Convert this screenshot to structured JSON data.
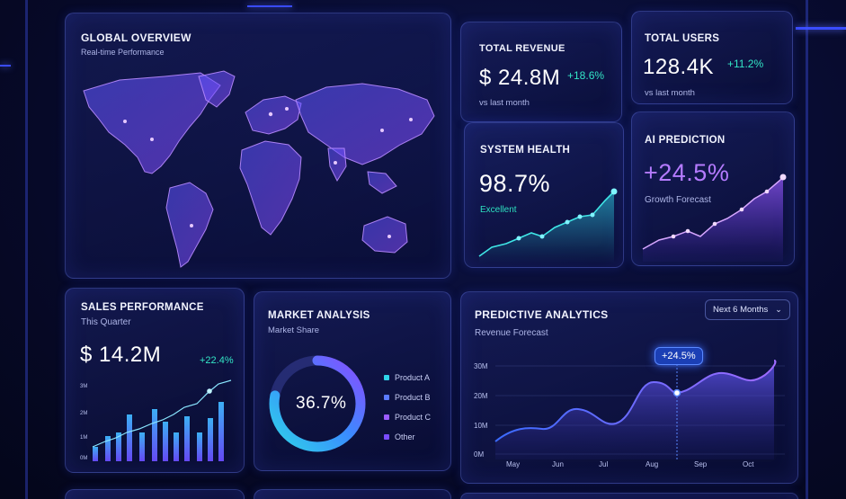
{
  "global_overview": {
    "title": "GLOBAL OVERVIEW",
    "subtitle": "Real-time Performance"
  },
  "total_revenue": {
    "title": "TOTAL REVENUE",
    "value": "$ 24.8M",
    "delta": "+18.6%",
    "note": "vs last month"
  },
  "total_users": {
    "title": "TOTAL USERS",
    "value": "128.4K",
    "delta": "+11.2%",
    "note": "vs last month"
  },
  "system_health": {
    "title": "SYSTEM HEALTH",
    "value": "98.7%",
    "status": "Excellent",
    "status_color": "#2de0c0"
  },
  "ai_prediction": {
    "title": "AI PREDICTION",
    "value": "+24.5%",
    "label": "Growth Forecast",
    "accent": "#b57bff"
  },
  "sales_performance": {
    "title": "SALES PERFORMANCE",
    "subtitle": "This Quarter",
    "value": "$ 14.2M",
    "delta": "+22.4%",
    "y_ticks": [
      "3M",
      "2M",
      "1M",
      "0M"
    ]
  },
  "market_analysis": {
    "title": "MARKET ANALYSIS",
    "subtitle": "Market Share",
    "center_value": "36.7%",
    "legend": [
      {
        "label": "Product A",
        "color": "#2fd3e8"
      },
      {
        "label": "Product B",
        "color": "#5b7bff"
      },
      {
        "label": "Product C",
        "color": "#9b5cff"
      },
      {
        "label": "Other",
        "color": "#7a4cff"
      }
    ]
  },
  "predictive_analytics": {
    "title": "PREDICTIVE ANALYTICS",
    "subtitle": "Revenue Forecast",
    "range_select": "Next 6 Months",
    "tooltip": "+24.5%",
    "y_ticks": [
      "30M",
      "20M",
      "10M",
      "0M"
    ],
    "x_ticks": [
      "May",
      "Jun",
      "Jul",
      "Aug",
      "Sep",
      "Oct"
    ]
  },
  "colors": {
    "accent_cyan": "#33e6c6",
    "accent_blue": "#3a6bff",
    "accent_purple": "#9b5cff"
  }
}
